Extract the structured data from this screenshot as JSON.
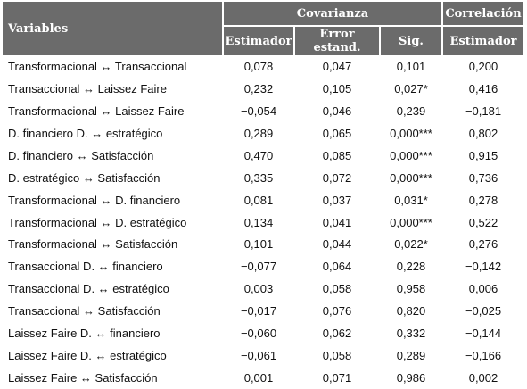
{
  "header": {
    "variables": "Variables",
    "group_covarianza": "Covarianza",
    "group_correlacion": "Correlación",
    "col_estimador": "Estimador",
    "col_error": "Error estand.",
    "col_sig": "Sig.",
    "col_corr_estimador": "Estimador"
  },
  "rows": [
    {
      "variable": "Transformacional ↔ Transaccional",
      "estimador": "0,078",
      "error": "0,047",
      "sig": "0,101",
      "correlacion": "0,200"
    },
    {
      "variable": "Transaccional ↔ Laissez Faire",
      "estimador": "0,232",
      "error": "0,105",
      "sig": "0,027*",
      "correlacion": "0,416"
    },
    {
      "variable": "Transformacional ↔ Laissez Faire",
      "estimador": "−0,054",
      "error": "0,046",
      "sig": "0,239",
      "correlacion": "−0,181"
    },
    {
      "variable": "D. financiero D. ↔ estratégico",
      "estimador": "0,289",
      "error": "0,065",
      "sig": "0,000***",
      "correlacion": "0,802"
    },
    {
      "variable": "D. financiero ↔ Satisfacción",
      "estimador": "0,470",
      "error": "0,085",
      "sig": "0,000***",
      "correlacion": "0,915"
    },
    {
      "variable": "D. estratégico ↔ Satisfacción",
      "estimador": "0,335",
      "error": "0,072",
      "sig": "0,000***",
      "correlacion": "0,736"
    },
    {
      "variable": "Transformacional ↔ D. financiero",
      "estimador": "0,081",
      "error": "0,037",
      "sig": "0,031*",
      "correlacion": "0,278"
    },
    {
      "variable": "Transformacional ↔ D. estratégico",
      "estimador": "0,134",
      "error": "0,041",
      "sig": "0,000***",
      "correlacion": "0,522"
    },
    {
      "variable": "Transformacional ↔ Satisfacción",
      "estimador": "0,101",
      "error": "0,044",
      "sig": "0,022*",
      "correlacion": "0,276"
    },
    {
      "variable": "Transaccional D. ↔ financiero",
      "estimador": "−0,077",
      "error": "0,064",
      "sig": "0,228",
      "correlacion": "−0,142"
    },
    {
      "variable": "Transaccional D. ↔ estratégico",
      "estimador": "0,003",
      "error": "0,058",
      "sig": "0,958",
      "correlacion": "0,006"
    },
    {
      "variable": "Transaccional ↔ Satisfacción",
      "estimador": "−0,017",
      "error": "0,076",
      "sig": "0,820",
      "correlacion": "−0,025"
    },
    {
      "variable": "Laissez Faire D. ↔ financiero",
      "estimador": "−0,060",
      "error": "0,062",
      "sig": "0,332",
      "correlacion": "−0,144"
    },
    {
      "variable": "Laissez Faire D. ↔ estratégico",
      "estimador": "−0,061",
      "error": "0,058",
      "sig": "0,289",
      "correlacion": "−0,166"
    },
    {
      "variable": "Laissez Faire ↔ Satisfacción",
      "estimador": "0,001",
      "error": "0,071",
      "sig": "0,986",
      "correlacion": "0,002"
    }
  ]
}
